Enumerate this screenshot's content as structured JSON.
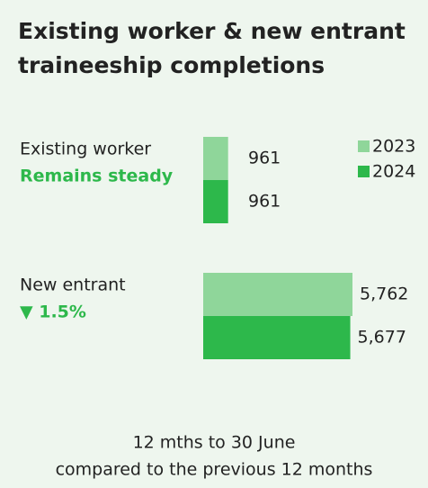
{
  "chart_data": {
    "type": "bar",
    "orientation": "horizontal",
    "title_lines": [
      "Existing worker & new entrant",
      "traineeship completions"
    ],
    "categories": [
      "Existing worker",
      "New entrant"
    ],
    "annotations": [
      "Remains steady",
      "▼ 1.5%"
    ],
    "series": [
      {
        "name": "2023",
        "color": "#8fd69a",
        "values": [
          961,
          5762
        ],
        "value_labels": [
          "961",
          "5,762"
        ]
      },
      {
        "name": "2024",
        "color": "#2db84b",
        "values": [
          961,
          5677
        ],
        "value_labels": [
          "961",
          "5,677"
        ]
      }
    ],
    "footer": [
      "12 mths to 30 June",
      "compared to the previous 12 months"
    ]
  }
}
